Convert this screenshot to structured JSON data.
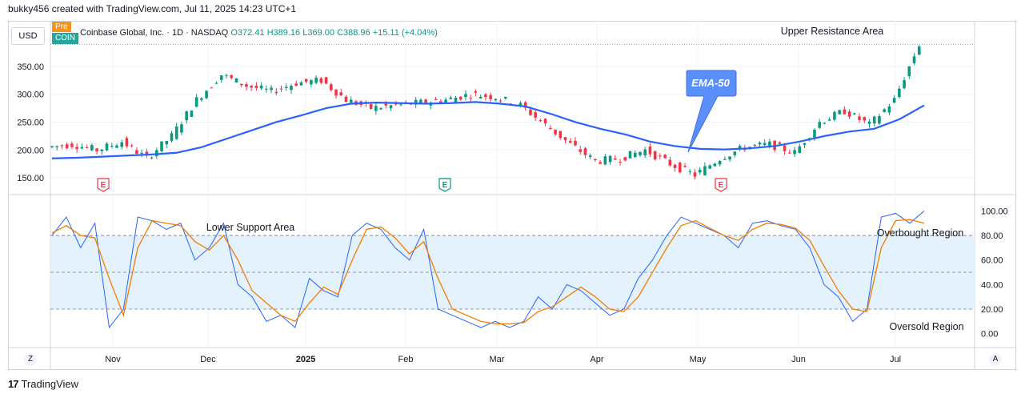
{
  "header": {
    "credit": "bukky456 created with TradingView.com, Jul 11, 2025 14:23 UTC+1",
    "currency": "USD",
    "pre_badge": "Pre",
    "ticker_badge": "COIN",
    "symbol": "Coinbase Global, Inc. · 1D · NASDAQ",
    "open": "O372.41",
    "high": "H389.16",
    "low": "L369.00",
    "close": "C388.96",
    "change": "+15.11 (+4.04%)"
  },
  "annotations": {
    "upper_resistance": "Upper Resistance Area",
    "lower_support": "Lower Support Area",
    "ema_callout": "EMA-50",
    "overbought": "Overbought Region",
    "oversold": "Oversold Region",
    "earnings_markers": [
      "E",
      "E",
      "E"
    ]
  },
  "footer": {
    "brand": "TradingView",
    "z_button": "Z",
    "a_button": "A"
  },
  "colors": {
    "up": "#089981",
    "down": "#f23645",
    "ema": "#2962ff",
    "stoch_k": "#2962ff",
    "stoch_d": "#f57c00",
    "band": "#e3f2fd",
    "callout": "#5b8ff9"
  },
  "chart_data": [
    {
      "type": "candlestick",
      "title": "Coinbase Global, Inc. · 1D · NASDAQ",
      "ylim": [
        120,
        400
      ],
      "y_ticks": [
        150,
        200,
        250,
        300,
        350
      ],
      "y_tick_labels": [
        "150.00",
        "200.00",
        "250.00",
        "300.00",
        "350.00"
      ],
      "x_labels": [
        "Nov",
        "Dec",
        "2025",
        "Feb",
        "Mar",
        "Apr",
        "May",
        "Jun",
        "Jul"
      ],
      "resistance_level": 389,
      "series": [
        {
          "name": "EMA-50",
          "values": [
            185,
            186,
            188,
            190,
            192,
            195,
            205,
            220,
            235,
            250,
            262,
            275,
            283,
            285,
            284,
            283,
            284,
            286,
            283,
            278,
            265,
            250,
            238,
            228,
            215,
            207,
            202,
            201,
            203,
            207,
            215,
            225,
            233,
            238,
            255,
            280
          ]
        },
        {
          "name": "Close",
          "values": [
            205,
            210,
            200,
            215,
            185,
            225,
            290,
            335,
            315,
            305,
            320,
            325,
            290,
            275,
            280,
            285,
            290,
            300,
            295,
            280,
            245,
            210,
            180,
            185,
            200,
            175,
            155,
            185,
            205,
            210,
            195,
            250,
            270,
            245,
            290,
            389
          ]
        }
      ]
    },
    {
      "type": "line",
      "title": "",
      "ylim": [
        -10,
        112
      ],
      "y_ticks": [
        0,
        20,
        40,
        60,
        80,
        100
      ],
      "y_tick_labels": [
        "0.00",
        "20.00",
        "40.00",
        "60.00",
        "80.00",
        "100.00"
      ],
      "band": [
        20,
        80
      ],
      "series": [
        {
          "name": "",
          "values": [
            80,
            95,
            70,
            90,
            5,
            20,
            95,
            92,
            85,
            90,
            60,
            70,
            90,
            40,
            30,
            10,
            15,
            5,
            45,
            35,
            30,
            80,
            90,
            85,
            70,
            60,
            85,
            20,
            15,
            10,
            5,
            10,
            5,
            10,
            30,
            20,
            40,
            35,
            25,
            15,
            20,
            45,
            60,
            80,
            95,
            90,
            85,
            80,
            70,
            90,
            92,
            88,
            85,
            70,
            40,
            30,
            10,
            20,
            95,
            98,
            90,
            100
          ]
        },
        {
          "name": "",
          "values": [
            82,
            88,
            80,
            78,
            45,
            15,
            70,
            92,
            90,
            88,
            75,
            68,
            80,
            60,
            35,
            25,
            15,
            10,
            25,
            38,
            32,
            60,
            85,
            87,
            78,
            65,
            75,
            45,
            20,
            15,
            10,
            8,
            8,
            9,
            18,
            22,
            30,
            38,
            30,
            20,
            18,
            30,
            50,
            70,
            88,
            92,
            86,
            80,
            76,
            85,
            90,
            89,
            86,
            76,
            55,
            35,
            20,
            18,
            70,
            92,
            93,
            90
          ]
        }
      ]
    }
  ]
}
